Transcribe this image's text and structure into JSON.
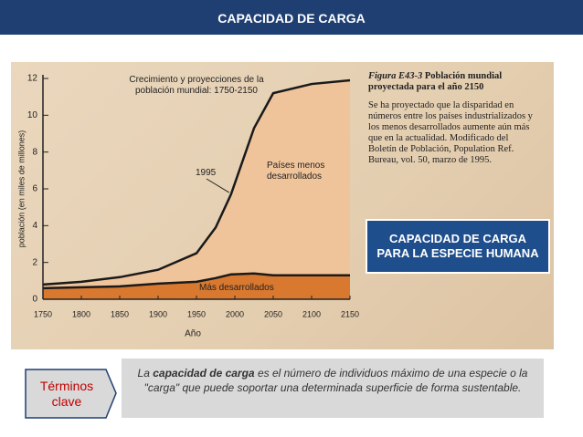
{
  "header": {
    "title": "CAPACIDAD DE CARGA"
  },
  "chart_data": {
    "type": "area",
    "title": "Crecimiento y proyecciones de la población mundial: 1750-2150",
    "x_label": "Año",
    "y_label": "población (en miles de millones)",
    "x": [
      1750,
      1800,
      1850,
      1900,
      1950,
      1975,
      1995,
      2025,
      2050,
      2100,
      2150
    ],
    "series": [
      {
        "name": "Más desarrollados",
        "color": "#d9782f",
        "values": [
          0.6,
          0.65,
          0.7,
          0.85,
          0.95,
          1.15,
          1.35,
          1.4,
          1.3,
          1.3,
          1.3
        ]
      },
      {
        "name": "Países menos desarrollados",
        "color": "#f0c49a",
        "values": [
          0.8,
          0.95,
          1.2,
          1.6,
          2.5,
          3.9,
          5.7,
          9.3,
          11.2,
          11.7,
          11.9
        ]
      }
    ],
    "annotations": [
      "1995"
    ],
    "xlim": [
      1750,
      2150
    ],
    "xticks": [
      1750,
      1800,
      1850,
      1900,
      1950,
      2000,
      2050,
      2100,
      2150
    ],
    "ylim": [
      0,
      12
    ],
    "yticks": [
      0,
      2,
      4,
      6,
      8,
      10,
      12
    ]
  },
  "figure": {
    "label": "Figura E43-3",
    "title": "Población mundial proyectada para el año 2150",
    "text": "Se ha proyectado que la disparidad en números entre los países industrializados y los menos desarrollados aumente aún más que en la actualidad. Modificado del Boletín de Población, Population Ref. Bureau, vol. 50, marzo de 1995."
  },
  "callout": "CAPACIDAD DE CARGA PARA LA ESPECIE HUMANA",
  "terms": {
    "label": "Términos clave",
    "before": "La",
    "term": "capacidad de carga",
    "after": "es el número de individuos máximo de una especie o la \"carga\" que puede soportar una determinada superficie de forma sustentable."
  }
}
